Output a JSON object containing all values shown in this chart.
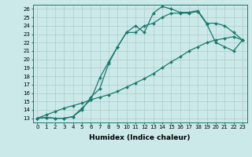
{
  "xlabel": "Humidex (Indice chaleur)",
  "background_color": "#cce9e9",
  "line_color": "#1a7a6e",
  "grid_color": "#aacccc",
  "xlim": [
    -0.5,
    23.5
  ],
  "ylim": [
    12.5,
    26.5
  ],
  "xticks": [
    0,
    1,
    2,
    3,
    4,
    5,
    6,
    7,
    8,
    9,
    10,
    11,
    12,
    13,
    14,
    15,
    16,
    17,
    18,
    19,
    20,
    21,
    22,
    23
  ],
  "yticks": [
    13,
    14,
    15,
    16,
    17,
    18,
    19,
    20,
    21,
    22,
    23,
    24,
    25,
    26
  ],
  "line1_x": [
    0,
    1,
    2,
    3,
    4,
    5,
    6,
    7,
    8,
    9,
    10,
    11,
    12,
    13,
    14,
    15,
    16,
    17,
    18,
    19,
    20,
    21,
    22,
    23
  ],
  "line1_y": [
    13,
    13.1,
    13.0,
    13.0,
    13.2,
    14.0,
    15.5,
    16.5,
    19.5,
    21.5,
    23.2,
    24.0,
    23.2,
    25.5,
    26.3,
    26.0,
    25.6,
    25.6,
    25.8,
    24.3,
    24.3,
    24.0,
    23.2,
    22.3
  ],
  "line2_x": [
    0,
    1,
    2,
    3,
    4,
    5,
    6,
    7,
    8,
    9,
    10,
    11,
    12,
    13,
    14,
    15,
    16,
    17,
    18,
    19,
    20,
    21,
    22,
    23
  ],
  "line2_y": [
    13,
    13.1,
    13.0,
    13.0,
    13.2,
    14.2,
    15.2,
    17.8,
    19.7,
    21.5,
    23.2,
    23.2,
    24.0,
    24.3,
    25.0,
    25.5,
    25.5,
    25.5,
    25.7,
    24.2,
    22.0,
    21.5,
    21.0,
    22.3
  ],
  "line3_x": [
    0,
    1,
    2,
    3,
    4,
    5,
    6,
    7,
    8,
    9,
    10,
    11,
    12,
    13,
    14,
    15,
    16,
    17,
    18,
    19,
    20,
    21,
    22,
    23
  ],
  "line3_y": [
    13,
    13.4,
    13.8,
    14.2,
    14.5,
    14.8,
    15.2,
    15.5,
    15.8,
    16.2,
    16.7,
    17.2,
    17.7,
    18.3,
    19.0,
    19.7,
    20.3,
    21.0,
    21.5,
    22.0,
    22.3,
    22.5,
    22.7,
    22.3
  ],
  "marker": "D",
  "marker_size": 2,
  "linewidth": 0.9,
  "axis_fontsize": 6.5,
  "tick_fontsize": 5.0
}
